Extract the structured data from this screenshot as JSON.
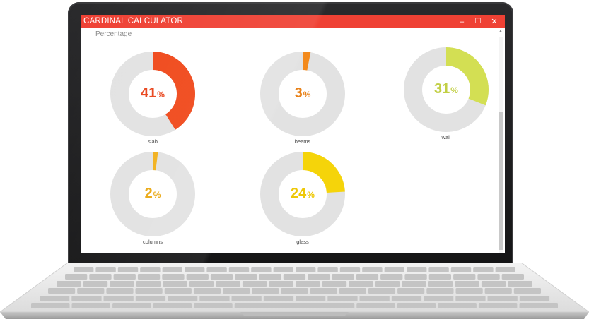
{
  "window": {
    "title": "CARDINAL CALCULATOR",
    "minimize_glyph": "–",
    "maximize_glyph": "☐",
    "close_glyph": "✕",
    "accent_color": "#ef4134"
  },
  "section": {
    "label": "Percentage"
  },
  "scrollbar": {
    "up_glyph": "▲"
  },
  "chart_data": {
    "type": "pie",
    "subtype": "donut",
    "title": "Percentage",
    "categories": [
      "slab",
      "beams",
      "wall",
      "columns",
      "glass"
    ],
    "values": [
      41,
      3,
      31,
      2,
      24
    ],
    "unit": "%",
    "track_color": "#e2e2e2",
    "colors": [
      "#f0491b",
      "#f38a1c",
      "#d3df53",
      "#f2b01b",
      "#f5d40a"
    ],
    "label_colors": [
      "#e8431a",
      "#e8821a",
      "#c2cf45",
      "#eaa812",
      "#eec808"
    ]
  }
}
